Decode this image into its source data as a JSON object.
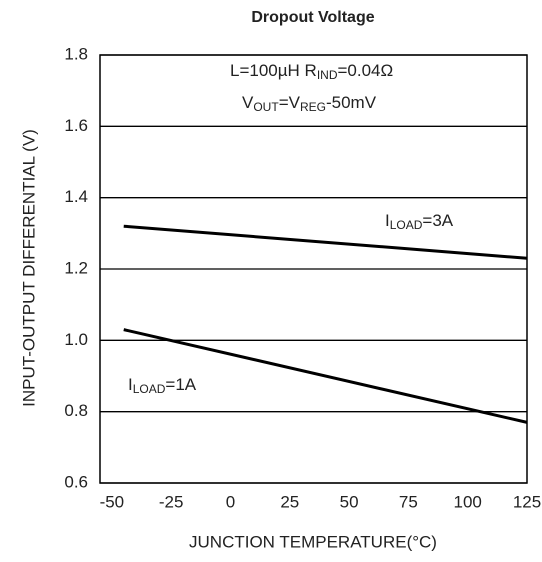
{
  "chart_data": {
    "type": "line",
    "title": "Dropout Voltage",
    "xlabel": "JUNCTION TEMPERATURE(°C)",
    "ylabel": "INPUT-OUTPUT DIFFERENTIAL (V)",
    "xlim": [
      -55,
      125
    ],
    "ylim": [
      0.6,
      1.8
    ],
    "xticks": [
      -50,
      -25,
      0,
      25,
      50,
      75,
      100,
      125
    ],
    "yticks": [
      0.6,
      0.8,
      {
        "value": 1.0,
        "label": "1.0"
      },
      1.2,
      1.4,
      1.6,
      1.8
    ],
    "grid": true,
    "x": [
      -45,
      125
    ],
    "series": [
      {
        "color": "#000000",
        "values": [
          1.32,
          1.23
        ],
        "label": [
          {
            "text": "I",
            "sub": false
          },
          {
            "text": "LOAD",
            "sub": true
          },
          {
            "text": "=3A",
            "sub": false
          }
        ]
      },
      {
        "color": "#000000",
        "values": [
          1.03,
          0.77
        ],
        "label": [
          {
            "text": "I",
            "sub": false
          },
          {
            "text": "LOAD",
            "sub": true
          },
          {
            "text": "=1A",
            "sub": false
          }
        ]
      }
    ],
    "annotations": [
      [
        {
          "text": "L=100µH  R",
          "sub": false
        },
        {
          "text": "IND",
          "sub": true
        },
        {
          "text": "=0.04Ω",
          "sub": false
        }
      ],
      [
        {
          "text": "V",
          "sub": false
        },
        {
          "text": "OUT",
          "sub": true
        },
        {
          "text": "=V",
          "sub": false
        },
        {
          "text": "REG",
          "sub": true
        },
        {
          "text": "-50mV",
          "sub": false
        }
      ]
    ]
  }
}
